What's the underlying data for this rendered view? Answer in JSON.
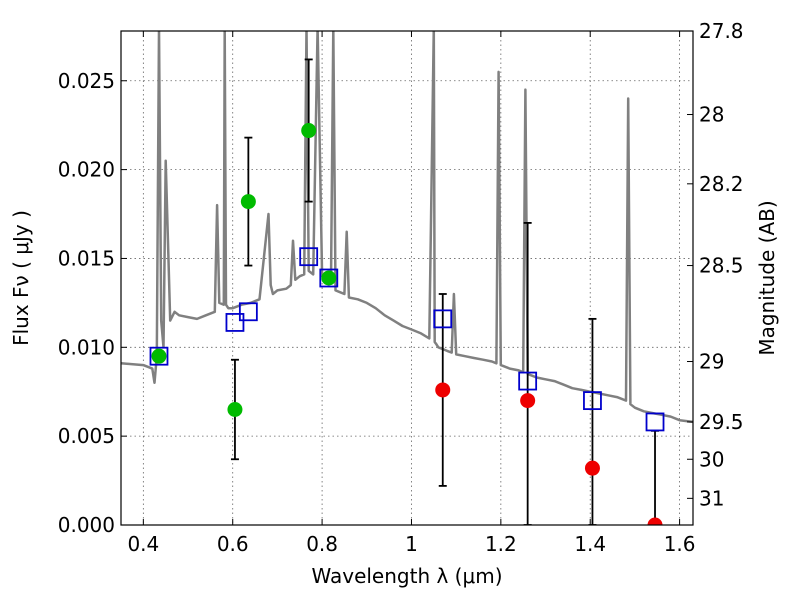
{
  "chart_data": {
    "type": "scatter",
    "x_axis": {
      "label": "Wavelength  λ (μm)",
      "range": [
        0.35,
        1.63
      ],
      "ticks": [
        0.4,
        0.6,
        0.8,
        1.0,
        1.2,
        1.4,
        1.6
      ],
      "tick_labels": [
        "0.4",
        "0.6",
        "0.8",
        "1",
        "1.2",
        "1.4",
        "1.6"
      ]
    },
    "y_axis_left": {
      "label": "Flux  Fν  ( μJy )",
      "range": [
        0.0,
        0.0278
      ],
      "ticks": [
        0.0,
        0.005,
        0.01,
        0.015,
        0.02,
        0.025
      ],
      "tick_labels": [
        "0.000",
        "0.005",
        "0.010",
        "0.015",
        "0.020",
        "0.025"
      ]
    },
    "y_axis_right": {
      "label": "Magnitude (AB)",
      "tick_labels": [
        "27.8",
        "28",
        "28.2",
        "28.5",
        "29",
        "29.5",
        "30",
        "31"
      ],
      "tick_flux": [
        0.0278,
        0.0231,
        0.0192,
        0.0146,
        0.0092,
        0.0058,
        0.0037,
        0.0015
      ]
    },
    "grid": true,
    "series": [
      {
        "kind": "model_spectrum",
        "color": "#808080",
        "x": [
          0.35,
          0.4,
          0.42,
          0.425,
          0.43,
          0.435,
          0.44,
          0.445,
          0.45,
          0.46,
          0.47,
          0.48,
          0.5,
          0.52,
          0.54,
          0.56,
          0.565,
          0.57,
          0.58,
          0.582,
          0.585,
          0.59,
          0.6,
          0.62,
          0.64,
          0.66,
          0.68,
          0.685,
          0.69,
          0.7,
          0.72,
          0.73,
          0.735,
          0.74,
          0.75,
          0.76,
          0.765,
          0.77,
          0.78,
          0.79,
          0.8,
          0.81,
          0.82,
          0.825,
          0.83,
          0.84,
          0.85,
          0.855,
          0.86,
          0.88,
          0.9,
          0.92,
          0.94,
          0.96,
          0.98,
          1.0,
          1.02,
          1.04,
          1.05,
          1.052,
          1.055,
          1.06,
          1.08,
          1.09,
          1.095,
          1.1,
          1.12,
          1.14,
          1.16,
          1.18,
          1.19,
          1.195,
          1.2,
          1.21,
          1.22,
          1.24,
          1.25,
          1.255,
          1.26,
          1.27,
          1.28,
          1.3,
          1.32,
          1.34,
          1.36,
          1.38,
          1.4,
          1.42,
          1.44,
          1.46,
          1.47,
          1.48,
          1.485,
          1.49,
          1.5,
          1.52,
          1.54,
          1.56,
          1.58,
          1.6,
          1.63
        ],
        "y": [
          0.0091,
          0.009,
          0.0088,
          0.008,
          0.0095,
          0.028,
          0.0115,
          0.01,
          0.0205,
          0.0115,
          0.012,
          0.0118,
          0.0117,
          0.0116,
          0.0118,
          0.012,
          0.018,
          0.0125,
          0.0124,
          0.028,
          0.0124,
          0.0122,
          0.0122,
          0.0124,
          0.0125,
          0.0127,
          0.0175,
          0.0135,
          0.013,
          0.0132,
          0.0133,
          0.0135,
          0.016,
          0.0138,
          0.014,
          0.0141,
          0.028,
          0.0143,
          0.0141,
          0.028,
          0.014,
          0.0139,
          0.0137,
          0.028,
          0.0132,
          0.0131,
          0.013,
          0.0165,
          0.0128,
          0.0127,
          0.0125,
          0.0122,
          0.0118,
          0.0115,
          0.0112,
          0.011,
          0.0108,
          0.0105,
          0.028,
          0.0103,
          0.0102,
          0.01,
          0.0098,
          0.0097,
          0.013,
          0.0096,
          0.0095,
          0.0094,
          0.0093,
          0.0092,
          0.0091,
          0.0255,
          0.009,
          0.0089,
          0.0088,
          0.0087,
          0.0086,
          0.0245,
          0.0085,
          0.0084,
          0.0083,
          0.0082,
          0.0081,
          0.0079,
          0.0077,
          0.0076,
          0.0075,
          0.0074,
          0.0073,
          0.0072,
          0.0071,
          0.007,
          0.024,
          0.0068,
          0.0066,
          0.0064,
          0.0063,
          0.0062,
          0.0061,
          0.0059,
          0.0058
        ]
      },
      {
        "kind": "model_photometry",
        "marker": "open-square",
        "color": "#0000cc",
        "x": [
          0.435,
          0.605,
          0.635,
          0.77,
          0.815,
          1.07,
          1.26,
          1.405,
          1.545
        ],
        "y": [
          0.0095,
          0.0114,
          0.012,
          0.0151,
          0.0139,
          0.0116,
          0.0081,
          0.007,
          0.0058
        ]
      },
      {
        "kind": "detections",
        "marker": "filled-circle",
        "color": "#00bb00",
        "x": [
          0.435,
          0.605,
          0.635,
          0.77,
          0.815
        ],
        "y": [
          0.0095,
          0.0065,
          0.0182,
          0.0222,
          0.0139
        ],
        "yerr": [
          0.0,
          0.0028,
          0.0036,
          0.004,
          0.0
        ]
      },
      {
        "kind": "non_detections",
        "marker": "filled-circle",
        "color": "#ee0000",
        "x": [
          1.07,
          1.26,
          1.405,
          1.545
        ],
        "y": [
          0.0076,
          0.007,
          0.0032,
          0.0
        ],
        "yerr": [
          0.0054,
          0.01,
          0.0084,
          0.0053
        ]
      }
    ]
  }
}
